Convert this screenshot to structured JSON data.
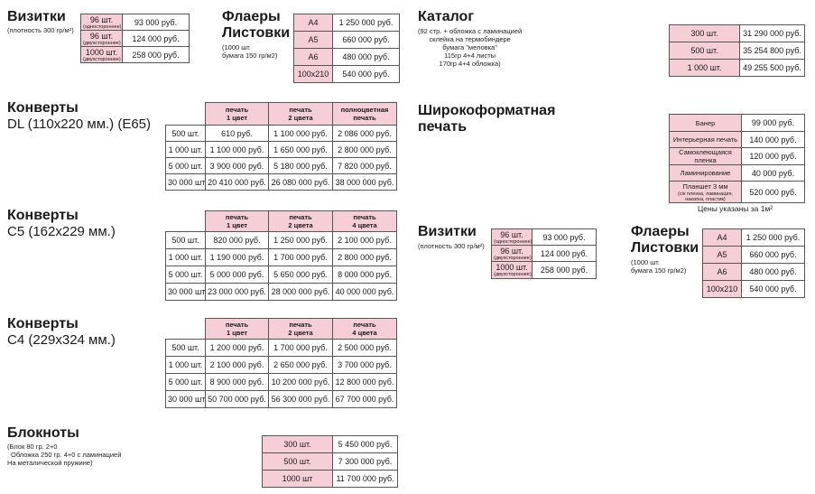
{
  "vizitki": {
    "title": "Визитки",
    "note": "(плотность 300 гр/м²)",
    "rows": [
      {
        "qty": "96 шт.",
        "sub": "(одностороннее)",
        "price": "93 000 руб."
      },
      {
        "qty": "96 шт.",
        "sub": "(двухстороннее)",
        "price": "124 000 руб."
      },
      {
        "qty": "1000 шт.",
        "sub": "(двухстороннее)",
        "price": "258 000 руб."
      }
    ]
  },
  "flyers": {
    "title_line1": "Флаеры",
    "title_line2": "Листовки",
    "note_line1": "(1000 шт.",
    "note_line2": "бумага 150 гр/м2)",
    "rows": [
      {
        "format": "А4",
        "price": "1 250 000 руб."
      },
      {
        "format": "А5",
        "price": "660 000 руб."
      },
      {
        "format": "А6",
        "price": "480 000 руб."
      },
      {
        "format": "100x210",
        "price": "540 000 руб."
      }
    ]
  },
  "catalog": {
    "title": "Каталог",
    "note_lines": [
      "(92 стр. + обложка с ламинацией",
      "склейка на термобиндере",
      "бумага \"меловка\"",
      "115гр 4+4 листы",
      "170гр 4+4 обложка)"
    ],
    "rows": [
      {
        "qty": "300 шт.",
        "price": "31 290 000 руб."
      },
      {
        "qty": "500 шт.",
        "price": "35 254 800 руб."
      },
      {
        "qty": "1 000 шт.",
        "price": "49 255 500 руб."
      }
    ]
  },
  "envelopes_dl": {
    "title": "Конверты",
    "subtitle": "DL (110x220 мм.) (E65)",
    "headers": [
      [
        "печать",
        "1 цвет"
      ],
      [
        "печать",
        "2 цвета"
      ],
      [
        "полноцветная",
        "печать"
      ]
    ],
    "rows": [
      {
        "qty": "500 шт.",
        "p1": "610 руб.",
        "p2": "1 100 000 руб.",
        "p3": "2 086 000 руб."
      },
      {
        "qty": "1 000 шт.",
        "p1": "1 100 000 руб.",
        "p2": "1 650 000 руб.",
        "p3": "2 800 000 руб."
      },
      {
        "qty": "5 000 шт.",
        "p1": "3 900 000 руб.",
        "p2": "5 180 000 руб.",
        "p3": "7 820 000 руб."
      },
      {
        "qty": "30 000 шт.",
        "p1": "20 410 000 руб.",
        "p2": "26 080 000 руб.",
        "p3": "38 000 000 руб."
      }
    ]
  },
  "envelopes_c5": {
    "title": "Конверты",
    "subtitle": "C5 (162x229 мм.)",
    "headers": [
      [
        "печать",
        "1 цвет"
      ],
      [
        "печать",
        "2 цвета"
      ],
      [
        "печать",
        "4 цвета"
      ]
    ],
    "rows": [
      {
        "qty": "500 шт.",
        "p1": "820 000 руб.",
        "p2": "1 250 000 руб.",
        "p3": "2 100 000 руб."
      },
      {
        "qty": "1 000 шт.",
        "p1": "1 190 000 руб.",
        "p2": "1 700 000 руб.",
        "p3": "2 800 000 руб."
      },
      {
        "qty": "5 000 шт.",
        "p1": "5 000 000 руб.",
        "p2": "5 650 000 руб.",
        "p3": "8 000 000 руб."
      },
      {
        "qty": "30 000 шт.",
        "p1": "23 000 000 руб.",
        "p2": "28 000 000 руб.",
        "p3": "40 000 000 руб."
      }
    ]
  },
  "envelopes_c4": {
    "title": "Конверты",
    "subtitle": "C4 (229x324 мм.)",
    "headers": [
      [
        "печать",
        "1 цвет"
      ],
      [
        "печать",
        "2 цвета"
      ],
      [
        "печать",
        "4 цвета"
      ]
    ],
    "rows": [
      {
        "qty": "500 шт.",
        "p1": "1 200 000 руб.",
        "p2": "1 700 000 руб.",
        "p3": "2 500 000 руб."
      },
      {
        "qty": "1 000 шт.",
        "p1": "2 100 000 руб.",
        "p2": "2 650 000 руб.",
        "p3": "3 700 000 руб."
      },
      {
        "qty": "5 000 шт.",
        "p1": "8 900 000 руб.",
        "p2": "10 200 000 руб.",
        "p3": "12 800 000 руб."
      },
      {
        "qty": "30 000 шт.",
        "p1": "50 700 000 руб.",
        "p2": "56 300 000 руб.",
        "p3": "67 700 000 руб."
      }
    ]
  },
  "notebooks": {
    "title": "Блокноты",
    "note_lines": [
      "(Блок 80 гр. 2+0",
      "Обложка 250 гр. 4+0 с ламинацией",
      "На металической пружине)"
    ],
    "rows": [
      {
        "qty": "300 шт.",
        "price": "5 450 000 руб."
      },
      {
        "qty": "500 шт.",
        "price": "7 300 000 руб."
      },
      {
        "qty": "1000 шт",
        "price": "11 700 000 руб."
      }
    ]
  },
  "wide_format": {
    "title_line1": "Широкоформатная",
    "title_line2": "печать",
    "rows": [
      {
        "name": "Банер",
        "sub": "",
        "price": "99 000 руб."
      },
      {
        "name": "Интерьерная печать",
        "sub": "",
        "price": "140 000 руб."
      },
      {
        "name": "Самоклеющаяся пленка",
        "sub": "",
        "price": "120 000 руб."
      },
      {
        "name": "Ламинирование",
        "sub": "",
        "price": "40 000 руб."
      },
      {
        "name": "Планшет 3 мм",
        "sub": "(с/к пленка, ламинация, накатка, пластик)",
        "price": "520 000 руб."
      }
    ],
    "footnote": "Цены указаны за 1м²"
  },
  "vizitki2": {
    "title": "Визитки",
    "note": "(плотность 300 гр/м²)",
    "rows": [
      {
        "qty": "96 шт.",
        "sub": "(одностороннее)",
        "price": "93 000 руб."
      },
      {
        "qty": "96 шт.",
        "sub": "(двухстороннее)",
        "price": "124 000 руб."
      },
      {
        "qty": "1000 шт.",
        "sub": "(двухстороннее)",
        "price": "258 000 руб."
      }
    ]
  },
  "flyers2": {
    "title_line1": "Флаеры",
    "title_line2": "Листовки",
    "note_line1": "(1000 шт.",
    "note_line2": "бумага 150 гр/м2)",
    "rows": [
      {
        "format": "А4",
        "price": "1 250 000 руб."
      },
      {
        "format": "А5",
        "price": "660 000 руб."
      },
      {
        "format": "А6",
        "price": "480 000 руб."
      },
      {
        "format": "100x210",
        "price": "540 000 руб."
      }
    ]
  },
  "colors": {
    "pink_cell": "#f5cfd5",
    "border": "#555555",
    "text": "#1a1a1a"
  }
}
